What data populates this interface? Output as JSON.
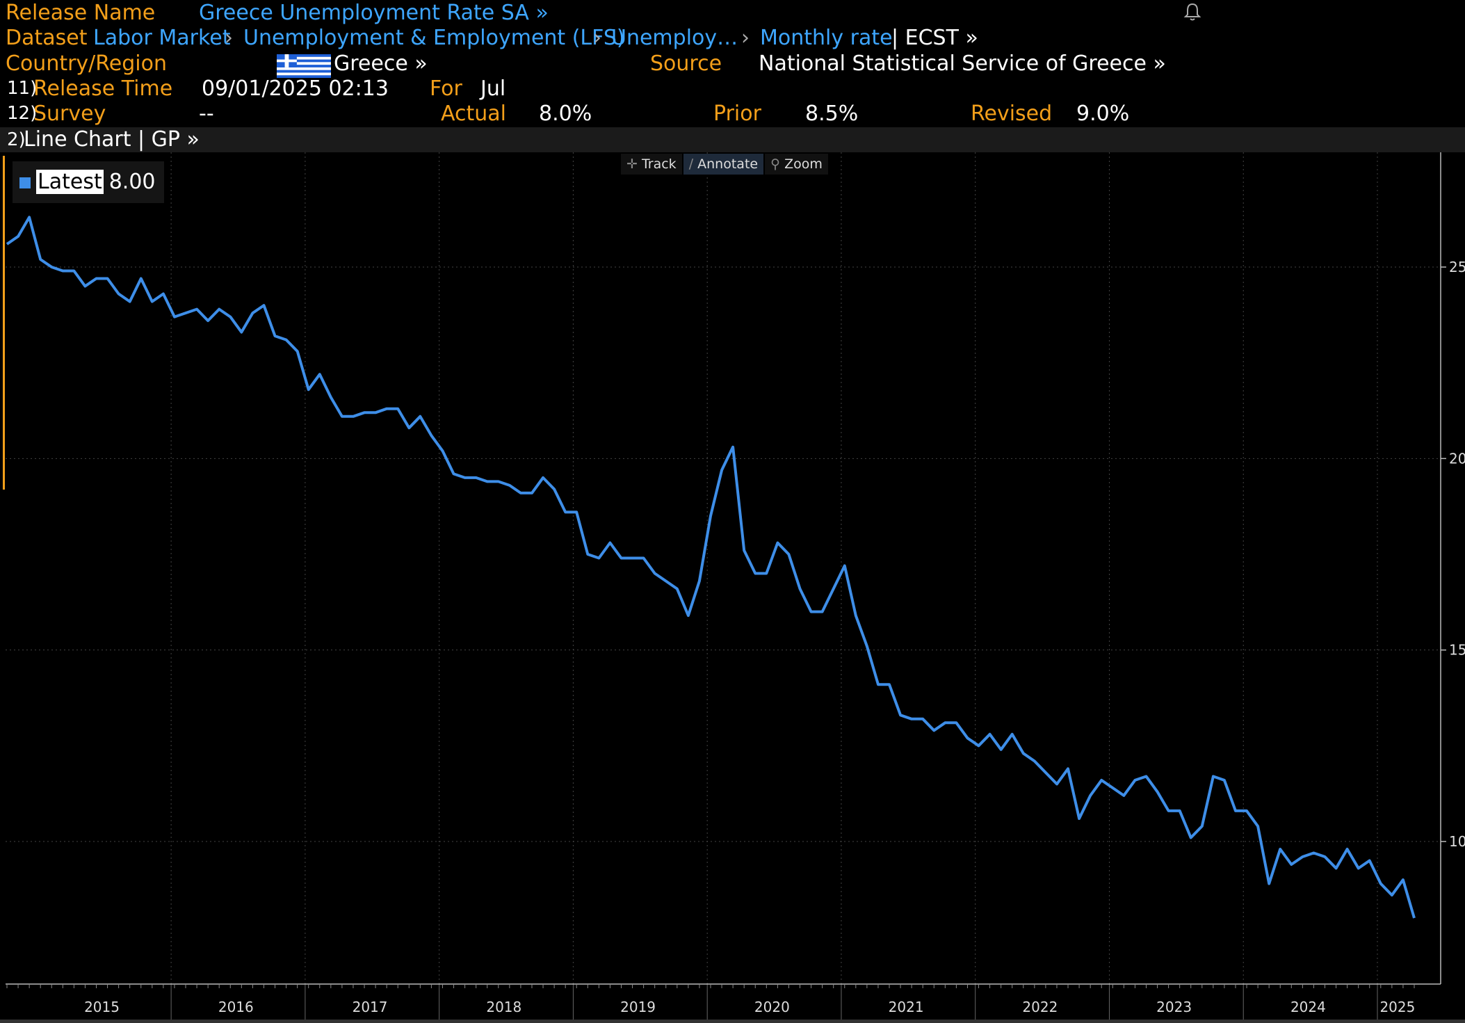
{
  "header": {
    "release_name_label": "Release Name",
    "release_name": "Greece Unemployment Rate SA »",
    "dataset_label": "Dataset",
    "dataset_path": [
      "Labor Market",
      "Unemployment & Employment (LFS)",
      "Unemploy…",
      "Monthly rate"
    ],
    "dataset_suffix": "| ECST »",
    "country_label": "Country/Region",
    "country": "Greece »",
    "source_label": "Source",
    "source": "National Statistical Service of Greece »",
    "release_time_num": "11)",
    "release_time_label": "Release Time",
    "release_time": "09/01/2025 02:13",
    "for_label": "For",
    "for_value": "Jul",
    "survey_num": "12)",
    "survey_label": "Survey",
    "survey": "--",
    "actual_label": "Actual",
    "actual": "8.0%",
    "prior_label": "Prior",
    "prior": "8.5%",
    "revised_label": "Revised",
    "revised": "9.0%"
  },
  "tab": {
    "num": "2)",
    "label": "Line Chart | GP »"
  },
  "toolbar": {
    "track": "Track",
    "annotate": "Annotate",
    "zoom": "Zoom"
  },
  "legend": {
    "label": "Latest",
    "value": "8.00",
    "color": "#3e8ee8"
  },
  "colors": {
    "label": "#f39f1a",
    "link": "#3ea6ff",
    "line": "#3e8ee8",
    "grid": "#444444",
    "flag_blue": "#1e5fd6"
  },
  "chart_data": {
    "type": "line",
    "x_start": "2014-10",
    "frequency": "monthly",
    "ylim": [
      6.5,
      28
    ],
    "yticks": [
      10,
      15,
      20,
      25
    ],
    "xtick_labels": [
      "2015",
      "2016",
      "2017",
      "2018",
      "2019",
      "2020",
      "2021",
      "2022",
      "2023",
      "2024",
      "2025"
    ],
    "grid": true,
    "series": [
      {
        "values": [
          25.6,
          25.8,
          26.3,
          25.2,
          25.0,
          24.9,
          24.9,
          24.5,
          24.7,
          24.7,
          24.3,
          24.1,
          24.7,
          24.1,
          24.3,
          23.7,
          23.8,
          23.9,
          23.6,
          23.9,
          23.7,
          23.3,
          23.8,
          24.0,
          23.2,
          23.1,
          22.8,
          21.8,
          22.2,
          21.6,
          21.1,
          21.1,
          21.2,
          21.2,
          21.3,
          21.3,
          20.8,
          21.1,
          20.6,
          20.2,
          19.6,
          19.5,
          19.5,
          19.4,
          19.4,
          19.3,
          19.1,
          19.1,
          19.5,
          19.2,
          18.6,
          18.6,
          17.5,
          17.4,
          17.8,
          17.4,
          17.4,
          17.4,
          17.0,
          16.8,
          16.6,
          15.9,
          16.8,
          18.5,
          19.7,
          20.3,
          17.6,
          17.0,
          17.0,
          17.8,
          17.5,
          16.6,
          16.0,
          16.0,
          16.6,
          17.2,
          15.9,
          15.1,
          14.1,
          14.1,
          13.3,
          13.2,
          13.2,
          12.9,
          13.1,
          13.1,
          12.7,
          12.5,
          12.8,
          12.4,
          12.8,
          12.3,
          12.1,
          11.8,
          11.5,
          11.9,
          10.6,
          11.2,
          11.6,
          11.4,
          11.2,
          11.6,
          11.7,
          11.3,
          10.8,
          10.8,
          10.1,
          10.4,
          11.7,
          11.6,
          10.8,
          10.8,
          10.4,
          8.9,
          9.8,
          9.4,
          9.6,
          9.7,
          9.6,
          9.3,
          9.8,
          9.3,
          9.5,
          8.9,
          8.6,
          9.0,
          8.0
        ]
      }
    ]
  }
}
